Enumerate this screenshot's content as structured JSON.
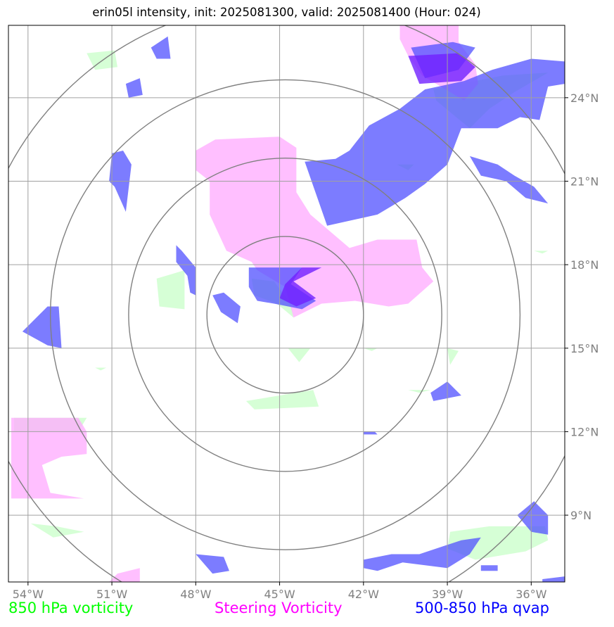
{
  "title": "erin05l intensity, init: 2025081300, valid: 2025081400 (Hour: 024)",
  "axes": {
    "lon_ticks": [
      {
        "value": -54,
        "label": "54°W"
      },
      {
        "value": -51,
        "label": "51°W"
      },
      {
        "value": -48,
        "label": "48°W"
      },
      {
        "value": -45,
        "label": "45°W"
      },
      {
        "value": -42,
        "label": "42°W"
      },
      {
        "value": -39,
        "label": "39°W"
      },
      {
        "value": -36,
        "label": "36°W"
      }
    ],
    "lat_ticks": [
      {
        "value": 24,
        "label": "24°N"
      },
      {
        "value": 21,
        "label": "21°N"
      },
      {
        "value": 18,
        "label": "18°N"
      },
      {
        "value": 15,
        "label": "15°N"
      },
      {
        "value": 12,
        "label": "12°N"
      },
      {
        "value": 9,
        "label": "9°N"
      }
    ],
    "lon_range": [
      -54.7,
      -34.8
    ],
    "lat_range": [
      6.6,
      26.6
    ],
    "grid": true
  },
  "range_rings": {
    "center": {
      "lon": -44.8,
      "lat": 16.2
    },
    "radii_deg": [
      2.8,
      5.6,
      8.4,
      11.2
    ]
  },
  "legend": {
    "green_label": "850 hPa vorticity",
    "magenta_label": "Steering Vorticity",
    "blue_label": "500-850 hPa qvap"
  },
  "colors": {
    "green": "#c8ffc8",
    "magenta": "#ffaaff",
    "blue": "#5050ff",
    "purple": "#7020ff",
    "grid": "#a0a0a0",
    "rings": "#808080"
  },
  "layers": {
    "green": [
      [
        [
          -51.9,
          25.6
        ],
        [
          -50.9,
          25.7
        ],
        [
          -50.8,
          25.1
        ],
        [
          -51.6,
          25.0
        ]
      ],
      [
        [
          -39.5,
          24.3
        ],
        [
          -37.0,
          24.8
        ],
        [
          -35.4,
          24.9
        ],
        [
          -36.6,
          24.2
        ],
        [
          -37.5,
          23.6
        ],
        [
          -38.2,
          22.9
        ],
        [
          -38.8,
          23.4
        ],
        [
          -39.4,
          23.9
        ]
      ],
      [
        [
          -40.8,
          21.6
        ],
        [
          -40.2,
          21.6
        ],
        [
          -40.4,
          21.4
        ]
      ],
      [
        [
          -49.4,
          17.5
        ],
        [
          -48.4,
          17.8
        ],
        [
          -48.4,
          16.4
        ],
        [
          -49.3,
          16.5
        ]
      ],
      [
        [
          -46.0,
          17.5
        ],
        [
          -45.2,
          17.4
        ],
        [
          -44.6,
          16.6
        ],
        [
          -44.5,
          16.1
        ],
        [
          -45.1,
          16.6
        ],
        [
          -45.9,
          16.9
        ]
      ],
      [
        [
          -44.7,
          15.0
        ],
        [
          -43.9,
          15.0
        ],
        [
          -44.3,
          14.5
        ]
      ],
      [
        [
          -46.2,
          13.1
        ],
        [
          -43.8,
          13.5
        ],
        [
          -43.6,
          12.9
        ],
        [
          -45.9,
          12.8
        ]
      ],
      [
        [
          -39.0,
          15.0
        ],
        [
          -38.6,
          14.9
        ],
        [
          -38.9,
          14.4
        ]
      ],
      [
        [
          -54.5,
          12.5
        ],
        [
          -51.9,
          12.5
        ],
        [
          -52.2,
          12.0
        ],
        [
          -54.5,
          12.0
        ]
      ],
      [
        [
          -53.9,
          8.7
        ],
        [
          -53.0,
          8.6
        ],
        [
          -52.0,
          8.4
        ],
        [
          -53.1,
          8.2
        ]
      ],
      [
        [
          -38.9,
          8.4
        ],
        [
          -37.5,
          8.6
        ],
        [
          -35.5,
          8.6
        ],
        [
          -35.4,
          8.1
        ],
        [
          -36.2,
          7.7
        ],
        [
          -38.0,
          7.4
        ],
        [
          -39.0,
          7.8
        ]
      ],
      [
        [
          -51.6,
          14.3
        ],
        [
          -51.2,
          14.3
        ],
        [
          -51.4,
          14.2
        ]
      ],
      [
        [
          -42.0,
          15.0
        ],
        [
          -41.5,
          15.0
        ],
        [
          -41.7,
          14.9
        ]
      ],
      [
        [
          -40.4,
          13.5
        ],
        [
          -39.6,
          13.5
        ],
        [
          -40.0,
          13.4
        ]
      ],
      [
        [
          -35.9,
          18.5
        ],
        [
          -35.4,
          18.5
        ],
        [
          -35.6,
          18.4
        ]
      ]
    ],
    "magenta": [
      [
        [
          -48.0,
          22.1
        ],
        [
          -47.3,
          22.5
        ],
        [
          -45.0,
          22.6
        ],
        [
          -44.4,
          22.2
        ],
        [
          -44.4,
          20.6
        ],
        [
          -43.9,
          19.8
        ],
        [
          -42.5,
          18.6
        ],
        [
          -41.5,
          18.9
        ],
        [
          -40.1,
          18.9
        ],
        [
          -39.9,
          17.9
        ],
        [
          -39.5,
          17.4
        ],
        [
          -40.4,
          16.6
        ],
        [
          -41.1,
          16.5
        ],
        [
          -42.3,
          16.7
        ],
        [
          -43.5,
          16.6
        ],
        [
          -44.5,
          16.1
        ],
        [
          -44.8,
          17.2
        ],
        [
          -45.8,
          17.8
        ],
        [
          -46.0,
          18.1
        ],
        [
          -46.9,
          18.5
        ],
        [
          -47.5,
          19.8
        ],
        [
          -47.5,
          21.0
        ],
        [
          -48.0,
          21.4
        ]
      ],
      [
        [
          -40.7,
          27.0
        ],
        [
          -38.6,
          27.0
        ],
        [
          -38.6,
          26.0
        ],
        [
          -38.0,
          25.2
        ],
        [
          -37.9,
          24.5
        ],
        [
          -38.4,
          23.9
        ],
        [
          -39.9,
          24.8
        ],
        [
          -40.4,
          25.5
        ],
        [
          -40.7,
          26.1
        ]
      ],
      [
        [
          -54.6,
          12.5
        ],
        [
          -52.2,
          12.5
        ],
        [
          -51.9,
          12.0
        ],
        [
          -51.9,
          11.2
        ],
        [
          -52.8,
          11.1
        ],
        [
          -53.5,
          10.8
        ],
        [
          -53.2,
          9.8
        ],
        [
          -52.0,
          9.6
        ],
        [
          -54.6,
          9.6
        ]
      ],
      [
        [
          -50.8,
          6.9
        ],
        [
          -50.0,
          7.1
        ],
        [
          -50.0,
          6.6
        ],
        [
          -51.1,
          6.6
        ]
      ]
    ],
    "blue": [
      [
        [
          -49.6,
          25.8
        ],
        [
          -49.0,
          26.2
        ],
        [
          -48.9,
          25.4
        ],
        [
          -49.4,
          25.4
        ]
      ],
      [
        [
          -50.5,
          24.5
        ],
        [
          -50.0,
          24.7
        ],
        [
          -49.9,
          24.1
        ],
        [
          -50.4,
          24.0
        ]
      ],
      [
        [
          -51.0,
          22.0
        ],
        [
          -50.6,
          22.1
        ],
        [
          -50.3,
          21.6
        ],
        [
          -50.5,
          19.9
        ],
        [
          -50.9,
          20.8
        ],
        [
          -51.1,
          21.0
        ]
      ],
      [
        [
          -48.7,
          18.7
        ],
        [
          -48.5,
          18.5
        ],
        [
          -48.0,
          17.9
        ],
        [
          -48.0,
          16.9
        ],
        [
          -48.2,
          17.0
        ],
        [
          -48.3,
          17.6
        ],
        [
          -48.7,
          18.1
        ]
      ],
      [
        [
          -47.4,
          16.9
        ],
        [
          -47.0,
          17.0
        ],
        [
          -46.4,
          16.5
        ],
        [
          -46.5,
          15.9
        ],
        [
          -47.1,
          16.3
        ]
      ],
      [
        [
          -46.1,
          17.9
        ],
        [
          -44.2,
          17.9
        ],
        [
          -44.6,
          17.3
        ],
        [
          -43.7,
          16.7
        ],
        [
          -44.2,
          16.4
        ],
        [
          -45.2,
          16.6
        ],
        [
          -45.8,
          16.7
        ],
        [
          -46.1,
          17.2
        ]
      ],
      [
        [
          -54.2,
          15.6
        ],
        [
          -53.3,
          16.5
        ],
        [
          -52.9,
          16.5
        ],
        [
          -52.8,
          15.0
        ],
        [
          -53.3,
          15.1
        ]
      ],
      [
        [
          -43.3,
          19.4
        ],
        [
          -41.5,
          19.8
        ],
        [
          -40.5,
          20.4
        ],
        [
          -39.8,
          20.9
        ],
        [
          -39.0,
          21.6
        ],
        [
          -38.5,
          22.9
        ],
        [
          -37.2,
          22.9
        ],
        [
          -36.4,
          23.3
        ],
        [
          -35.7,
          23.2
        ],
        [
          -35.4,
          24.4
        ],
        [
          -34.8,
          24.5
        ],
        [
          -34.8,
          25.3
        ],
        [
          -36.0,
          25.4
        ],
        [
          -37.4,
          25.0
        ],
        [
          -38.4,
          24.6
        ],
        [
          -39.8,
          24.3
        ],
        [
          -40.7,
          23.6
        ],
        [
          -41.8,
          23.0
        ],
        [
          -42.5,
          22.1
        ],
        [
          -43.0,
          21.8
        ],
        [
          -44.1,
          21.7
        ]
      ],
      [
        [
          -38.2,
          21.9
        ],
        [
          -37.2,
          21.6
        ],
        [
          -36.6,
          21.2
        ],
        [
          -35.9,
          20.8
        ],
        [
          -35.4,
          20.2
        ],
        [
          -36.2,
          20.4
        ],
        [
          -36.9,
          21.0
        ],
        [
          -37.8,
          21.2
        ]
      ],
      [
        [
          -40.3,
          25.8
        ],
        [
          -38.8,
          26.0
        ],
        [
          -38.0,
          25.8
        ],
        [
          -38.6,
          25.0
        ],
        [
          -39.8,
          24.7
        ]
      ],
      [
        [
          -48.0,
          7.6
        ],
        [
          -47.0,
          7.5
        ],
        [
          -46.8,
          7.0
        ],
        [
          -47.4,
          6.9
        ]
      ],
      [
        [
          -42.0,
          12.0
        ],
        [
          -41.6,
          12.0
        ],
        [
          -41.5,
          11.9
        ],
        [
          -42.0,
          11.9
        ]
      ],
      [
        [
          -39.6,
          13.4
        ],
        [
          -39.0,
          13.8
        ],
        [
          -38.5,
          13.3
        ],
        [
          -39.5,
          13.1
        ]
      ],
      [
        [
          -42.0,
          7.4
        ],
        [
          -41.0,
          7.6
        ],
        [
          -40.0,
          7.6
        ],
        [
          -38.5,
          8.1
        ],
        [
          -37.8,
          8.2
        ],
        [
          -38.2,
          7.6
        ],
        [
          -39.0,
          7.1
        ],
        [
          -40.6,
          7.3
        ],
        [
          -41.5,
          7.0
        ],
        [
          -42.0,
          7.1
        ]
      ],
      [
        [
          -36.5,
          9.0
        ],
        [
          -35.9,
          9.5
        ],
        [
          -35.4,
          9.0
        ],
        [
          -35.4,
          8.3
        ],
        [
          -36.0,
          8.4
        ]
      ],
      [
        [
          -37.8,
          7.2
        ],
        [
          -37.2,
          7.2
        ],
        [
          -37.2,
          7.0
        ],
        [
          -37.8,
          7.0
        ]
      ],
      [
        [
          -35.6,
          6.7
        ],
        [
          -34.8,
          6.8
        ],
        [
          -34.8,
          6.6
        ],
        [
          -35.6,
          6.6
        ]
      ]
    ],
    "purple": [
      [
        [
          -40.4,
          25.5
        ],
        [
          -38.6,
          25.6
        ],
        [
          -38.0,
          25.1
        ],
        [
          -38.5,
          24.6
        ],
        [
          -40.0,
          24.5
        ]
      ],
      [
        [
          -44.2,
          17.9
        ],
        [
          -43.5,
          17.9
        ],
        [
          -44.5,
          17.4
        ],
        [
          -43.7,
          16.8
        ],
        [
          -44.4,
          16.5
        ],
        [
          -45.0,
          16.8
        ],
        [
          -44.8,
          17.3
        ]
      ]
    ]
  }
}
